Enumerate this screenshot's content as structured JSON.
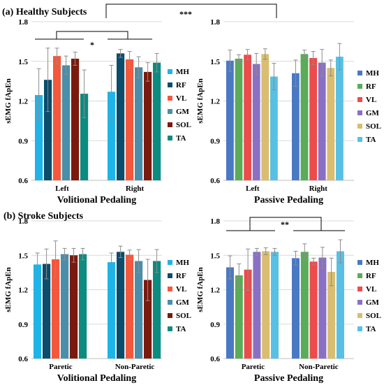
{
  "section_a_title": "(a) Healthy Subjects",
  "section_b_title": "(b) Stroke Subjects",
  "legend_order": [
    "MH",
    "RF",
    "VL",
    "GM",
    "SOL",
    "TA"
  ],
  "colors": {
    "volitional": {
      "MH": "#1fb4e8",
      "RF": "#0b4d6b",
      "VL": "#f4583c",
      "GM": "#4a8eaa",
      "SOL": "#7a1a0e",
      "TA": "#0c8b80"
    },
    "passive": {
      "MH": "#4a79c4",
      "RF": "#5aab5a",
      "VL": "#ec4c4c",
      "GM": "#8a70c4",
      "SOL": "#d9bd70",
      "TA": "#57c0e4"
    }
  },
  "chart_data": [
    {
      "type": "bar",
      "panel": "healthy-volitional",
      "xlabel": "Volitional Pedaling",
      "ylabel": "sEMG fApEn",
      "ylim": [
        0.6,
        1.8
      ],
      "yticks": [
        "0.6",
        "0.9",
        "1.2",
        "1.5",
        "1.8"
      ],
      "categories": [
        "Left",
        "Right"
      ],
      "series": [
        {
          "name": "MH",
          "values": [
            1.245,
            1.27
          ],
          "errors": [
            0.2,
            0.2
          ]
        },
        {
          "name": "RF",
          "values": [
            1.36,
            1.56
          ],
          "errors": [
            0.24,
            0.03
          ]
        },
        {
          "name": "VL",
          "values": [
            1.54,
            1.515
          ],
          "errors": [
            0.06,
            0.06
          ]
        },
        {
          "name": "GM",
          "values": [
            1.47,
            1.455
          ],
          "errors": [
            0.07,
            0.08
          ]
        },
        {
          "name": "SOL",
          "values": [
            1.52,
            1.42
          ],
          "errors": [
            0.05,
            0.07
          ]
        },
        {
          "name": "TA",
          "values": [
            1.255,
            1.49
          ],
          "errors": [
            0.18,
            0.07
          ]
        }
      ],
      "annotations": [
        "*"
      ]
    },
    {
      "type": "bar",
      "panel": "healthy-passive",
      "xlabel": "Passive Pedaling",
      "ylabel": "sEMG fApEn",
      "ylim": [
        0.6,
        1.8
      ],
      "yticks": [
        "0.6",
        "0.9",
        "1.2",
        "1.5",
        "1.8"
      ],
      "categories": [
        "Left",
        "Right"
      ],
      "series": [
        {
          "name": "MH",
          "values": [
            1.505,
            1.41
          ],
          "errors": [
            0.08,
            0.1
          ]
        },
        {
          "name": "RF",
          "values": [
            1.52,
            1.555
          ],
          "errors": [
            0.03,
            0.03
          ]
        },
        {
          "name": "VL",
          "values": [
            1.55,
            1.525
          ],
          "errors": [
            0.04,
            0.05
          ]
        },
        {
          "name": "GM",
          "values": [
            1.48,
            1.49
          ],
          "errors": [
            0.08,
            0.1
          ]
        },
        {
          "name": "SOL",
          "values": [
            1.555,
            1.45
          ],
          "errors": [
            0.04,
            0.06
          ]
        },
        {
          "name": "TA",
          "values": [
            1.385,
            1.535
          ],
          "errors": [
            0.1,
            0.1
          ]
        }
      ],
      "annotations": [
        "***"
      ]
    },
    {
      "type": "bar",
      "panel": "stroke-volitional",
      "xlabel": "Volitional Pedaling",
      "ylabel": "sEMG fApEn",
      "ylim": [
        0.6,
        1.8
      ],
      "yticks": [
        "0.6",
        "0.9",
        "1.2",
        "1.5",
        "1.8"
      ],
      "categories": [
        "Paretic",
        "Non-Paretic"
      ],
      "series": [
        {
          "name": "MH",
          "values": [
            1.42,
            1.44
          ],
          "errors": [
            0.1,
            0.08
          ]
        },
        {
          "name": "RF",
          "values": [
            1.425,
            1.53
          ],
          "errors": [
            0.13,
            0.05
          ]
        },
        {
          "name": "VL",
          "values": [
            1.465,
            1.505
          ],
          "errors": [
            0.16,
            0.04
          ]
        },
        {
          "name": "GM",
          "values": [
            1.51,
            1.45
          ],
          "errors": [
            0.05,
            0.1
          ]
        },
        {
          "name": "SOL",
          "values": [
            1.5,
            1.285
          ],
          "errors": [
            0.06,
            0.18
          ]
        },
        {
          "name": "TA",
          "values": [
            1.51,
            1.45
          ],
          "errors": [
            0.05,
            0.1
          ]
        }
      ]
    },
    {
      "type": "bar",
      "panel": "stroke-passive",
      "xlabel": "Passive Pedaling",
      "ylabel": "sEMG fApEn",
      "ylim": [
        0.6,
        1.8
      ],
      "yticks": [
        "0.6",
        "0.9",
        "1.2",
        "1.5",
        "1.8"
      ],
      "categories": [
        "Paretic",
        "Non-Paretic"
      ],
      "series": [
        {
          "name": "MH",
          "values": [
            1.395,
            1.475
          ],
          "errors": [
            0.1,
            0.06
          ]
        },
        {
          "name": "RF",
          "values": [
            1.325,
            1.53
          ],
          "errors": [
            0.1,
            0.07
          ]
        },
        {
          "name": "VL",
          "values": [
            1.375,
            1.445
          ],
          "errors": [
            0.18,
            0.03
          ]
        },
        {
          "name": "GM",
          "values": [
            1.53,
            1.48
          ],
          "errors": [
            0.03,
            0.09
          ]
        },
        {
          "name": "SOL",
          "values": [
            1.535,
            1.355
          ],
          "errors": [
            0.03,
            0.12
          ]
        },
        {
          "name": "TA",
          "values": [
            1.53,
            1.535
          ],
          "errors": [
            0.03,
            0.1
          ]
        }
      ],
      "annotations": [
        "**"
      ]
    }
  ]
}
